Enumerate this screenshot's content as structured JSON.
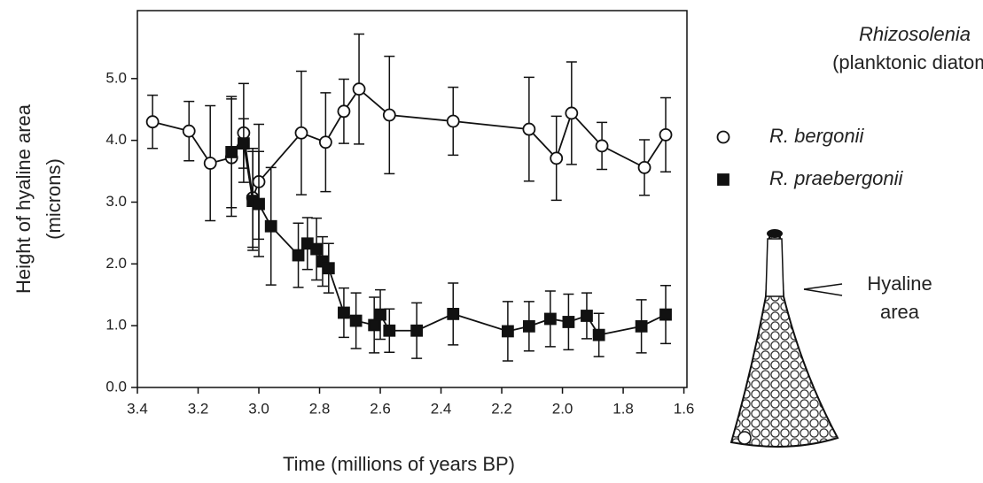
{
  "chart_data": {
    "type": "line",
    "xlabel": "Time (millions of years BP)",
    "ylabel": [
      "Height of hyaline area",
      "(microns)"
    ],
    "legend_title": [
      "Rhizosolenia",
      "(planktonic diatom)"
    ],
    "annotation": [
      "Hyaline",
      "area"
    ],
    "xlim": [
      3.4,
      1.59
    ],
    "xticks": [
      3.4,
      3.2,
      {
        "value": 3.0,
        "label": "3.0"
      },
      2.8,
      2.6,
      2.4,
      2.2,
      {
        "value": 2.0,
        "label": "2.0"
      },
      1.8,
      1.6
    ],
    "ylim": [
      0,
      6.1
    ],
    "yticks": [
      {
        "value": 0,
        "label": "0.0"
      },
      {
        "value": 1,
        "label": "1.0"
      },
      {
        "value": 2,
        "label": "2.0"
      },
      {
        "value": 3,
        "label": "3.0"
      },
      {
        "value": 4,
        "label": "4.0"
      },
      {
        "value": 5,
        "label": "5.0"
      }
    ],
    "legend": "right",
    "series": [
      {
        "name": "R. bergonii",
        "color": "#111111",
        "fill": "#ffffff",
        "marker": "circle",
        "x": [
          3.35,
          3.23,
          3.16,
          3.09,
          3.05,
          3.02,
          3.0,
          2.86,
          2.78,
          2.72,
          2.67,
          2.57,
          2.36,
          2.11,
          2.02,
          1.97,
          1.87,
          1.73,
          1.66
        ],
        "values": [
          4.3,
          4.15,
          3.63,
          3.72,
          4.12,
          3.07,
          3.33,
          4.12,
          3.97,
          4.47,
          4.83,
          4.41,
          4.31,
          4.18,
          3.71,
          4.44,
          3.91,
          3.56,
          4.09
        ],
        "errors": [
          0.43,
          0.48,
          0.93,
          0.95,
          0.8,
          0.8,
          0.93,
          1.0,
          0.8,
          0.52,
          0.89,
          0.95,
          0.55,
          0.84,
          0.68,
          0.83,
          0.38,
          0.45,
          0.6
        ]
      },
      {
        "name": "R. praebergonii",
        "color": "#111111",
        "fill": "#111111",
        "marker": "square",
        "x": [
          3.09,
          3.05,
          3.02,
          3.0,
          2.96,
          2.87,
          2.84,
          2.81,
          2.79,
          2.77,
          2.72,
          2.68,
          2.62,
          2.6,
          2.57,
          2.48,
          2.36,
          2.18,
          2.11,
          2.04,
          1.98,
          1.92,
          1.88,
          1.74,
          1.66
        ],
        "values": [
          3.81,
          3.95,
          3.02,
          2.97,
          2.61,
          2.14,
          2.33,
          2.24,
          2.04,
          1.93,
          1.21,
          1.08,
          1.01,
          1.18,
          0.92,
          0.92,
          1.19,
          0.91,
          0.99,
          1.11,
          1.06,
          1.16,
          0.85,
          0.99,
          1.18
        ],
        "errors": [
          0.9,
          0.4,
          0.8,
          0.85,
          0.95,
          0.52,
          0.42,
          0.5,
          0.4,
          0.4,
          0.4,
          0.45,
          0.45,
          0.4,
          0.35,
          0.45,
          0.5,
          0.48,
          0.4,
          0.45,
          0.45,
          0.37,
          0.35,
          0.43,
          0.47
        ]
      }
    ]
  }
}
